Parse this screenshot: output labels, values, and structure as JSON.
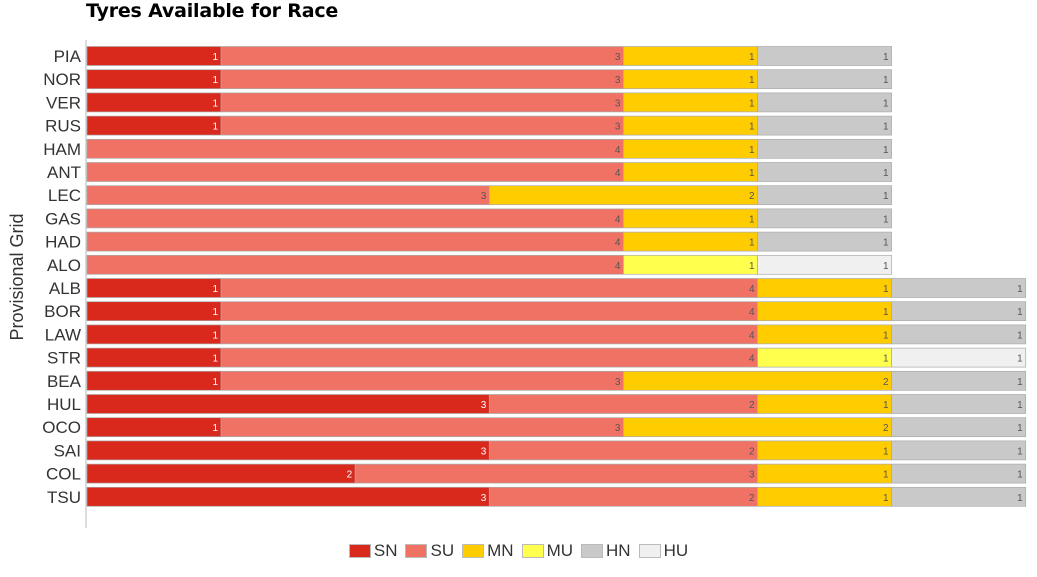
{
  "chart_data": {
    "type": "bar",
    "orientation": "horizontal",
    "stacked": true,
    "title": "Tyres Available for Race",
    "ylabel": "Provisional Grid",
    "xlabel": "",
    "categories": [
      "PIA",
      "NOR",
      "VER",
      "RUS",
      "HAM",
      "ANT",
      "LEC",
      "GAS",
      "HAD",
      "ALO",
      "ALB",
      "BOR",
      "LAW",
      "STR",
      "BEA",
      "HUL",
      "OCO",
      "SAI",
      "COL",
      "TSU"
    ],
    "series": [
      {
        "name": "SN",
        "color": "#d9291c",
        "values": [
          1,
          1,
          1,
          1,
          0,
          0,
          0,
          0,
          0,
          0,
          1,
          1,
          1,
          1,
          1,
          3,
          1,
          3,
          2,
          3
        ]
      },
      {
        "name": "SU",
        "color": "#f07265",
        "values": [
          3,
          3,
          3,
          3,
          4,
          4,
          3,
          4,
          4,
          4,
          4,
          4,
          4,
          4,
          3,
          2,
          3,
          2,
          3,
          2
        ]
      },
      {
        "name": "MN",
        "color": "#ffcc00",
        "values": [
          1,
          1,
          1,
          1,
          1,
          1,
          2,
          1,
          1,
          0,
          1,
          1,
          1,
          0,
          2,
          1,
          2,
          1,
          1,
          1
        ]
      },
      {
        "name": "MU",
        "color": "#ffff4d",
        "values": [
          0,
          0,
          0,
          0,
          0,
          0,
          0,
          0,
          0,
          1,
          0,
          0,
          0,
          1,
          0,
          0,
          0,
          0,
          0,
          0
        ]
      },
      {
        "name": "HN",
        "color": "#c9c9c9",
        "values": [
          1,
          1,
          1,
          1,
          1,
          1,
          1,
          1,
          1,
          0,
          1,
          1,
          1,
          0,
          1,
          1,
          1,
          1,
          1,
          1
        ]
      },
      {
        "name": "HU",
        "color": "#f0f0f0",
        "values": [
          0,
          0,
          0,
          0,
          0,
          0,
          0,
          0,
          0,
          1,
          0,
          0,
          0,
          1,
          0,
          0,
          0,
          0,
          0,
          0
        ]
      }
    ],
    "xlim": [
      0,
      7
    ],
    "legend_position": "bottom",
    "grid": false
  }
}
